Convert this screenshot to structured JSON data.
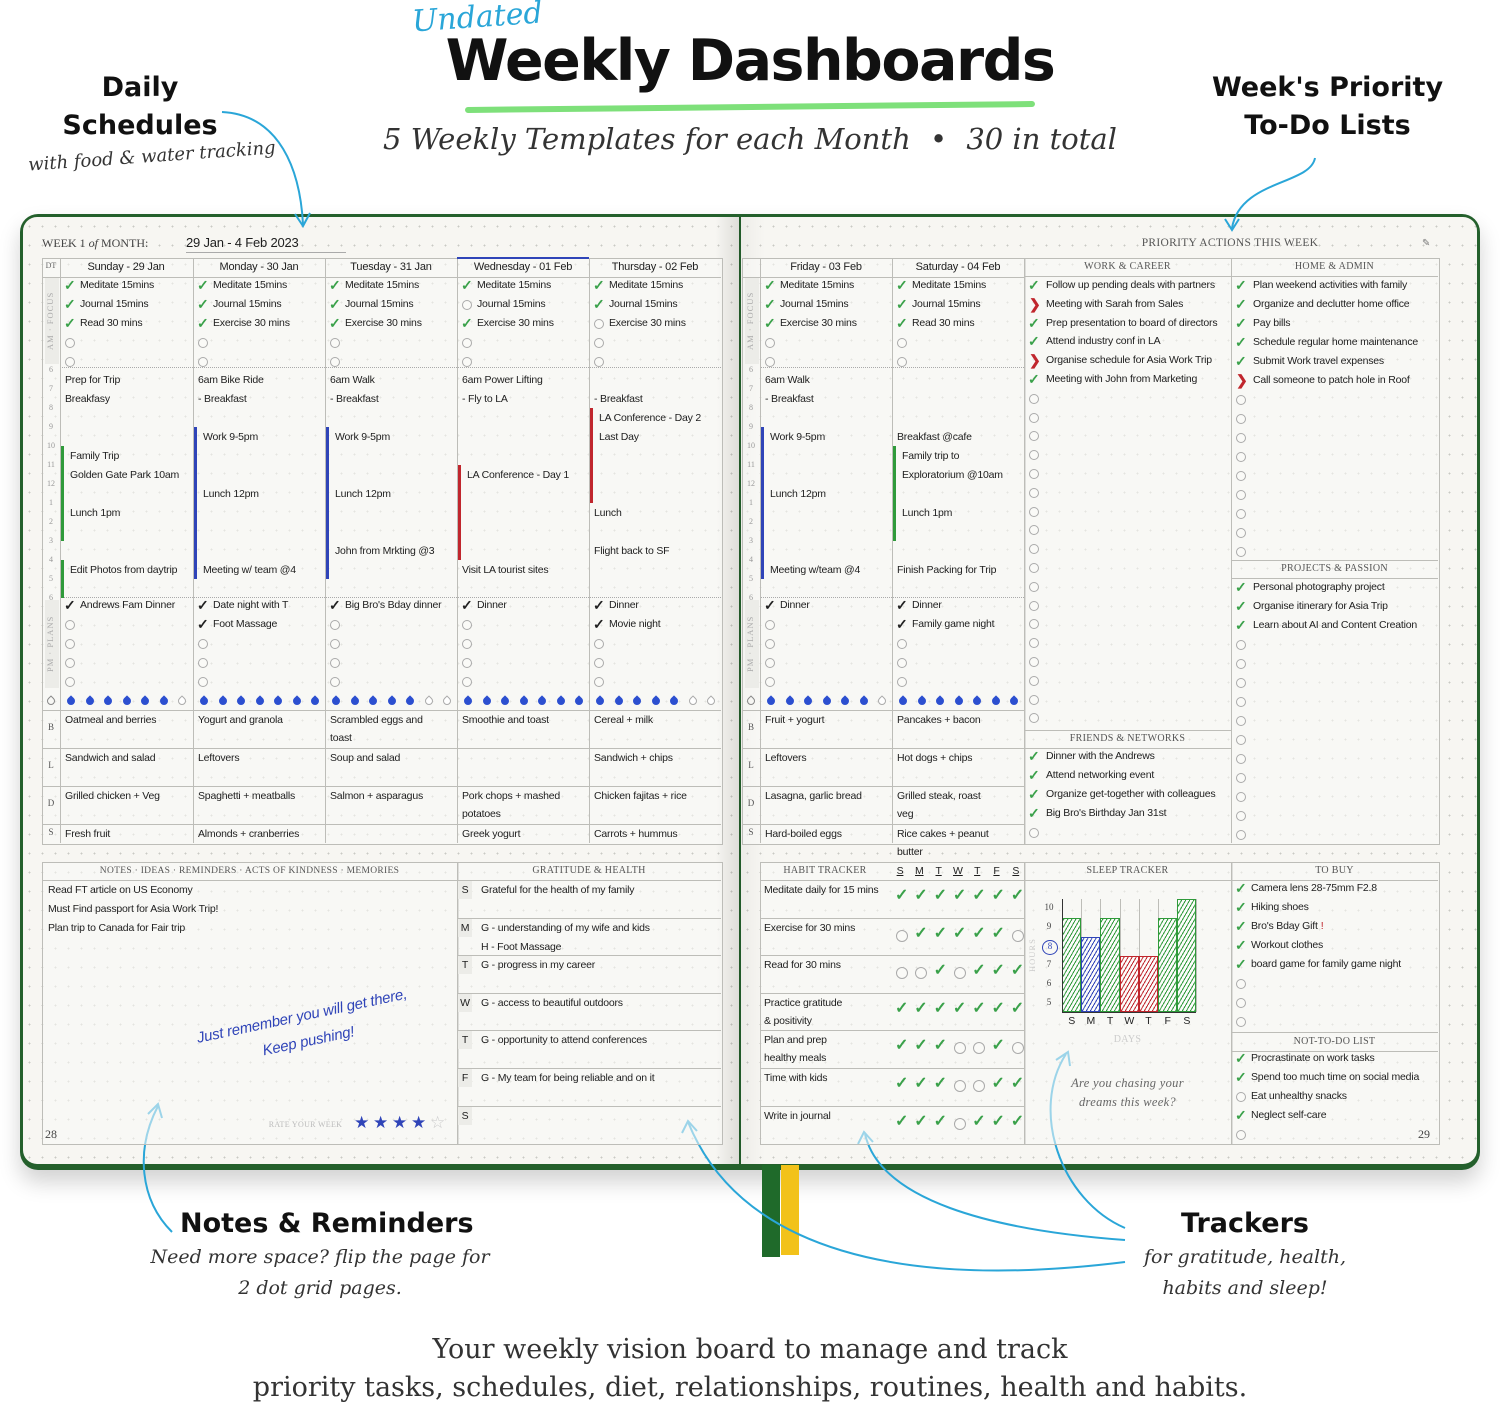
{
  "hero": {
    "undated": "Undated",
    "title": "Weekly Dashboards",
    "subtitle": "5 Weekly Templates for each Month",
    "subtitle_sep": "•",
    "subtitle_total": "30 in total"
  },
  "callouts": {
    "daily": {
      "line1": "Daily",
      "line2": "Schedules",
      "sub": "with food & water tracking"
    },
    "priority": {
      "line1": "Week's Priority",
      "line2": "To-Do Lists"
    },
    "notes": {
      "title": "Notes & Reminders",
      "sub1": "Need more space? flip the page for",
      "sub2": "2 dot grid pages."
    },
    "trackers": {
      "title": "Trackers",
      "sub1": "for gratitude, health,",
      "sub2": "habits and sleep!"
    }
  },
  "footer": {
    "line1": "Your weekly vision board to manage and track",
    "line2": "priority tasks, schedules, diet, relationships, routines, health and habits."
  },
  "left_page": {
    "week_prefix": "WEEK 1",
    "week_of": "of",
    "week_suffix": "MONTH:",
    "week_range": "29 Jan  -  4 Feb  2023",
    "dt": "DT",
    "am_label": "AM · FOCUS",
    "pm_label": "PM · PLANS",
    "meal_labels": [
      "B",
      "L",
      "D",
      "S"
    ],
    "page_number": "28"
  },
  "right_page": {
    "priority_title": "PRIORITY ACTIONS THIS WEEK",
    "page_number": "29"
  },
  "hours": [
    "6",
    "7",
    "8",
    "9",
    "10",
    "11",
    "12",
    "1",
    "2",
    "3",
    "4",
    "5",
    "6"
  ],
  "water_total": 7,
  "days": [
    {
      "header": "Sunday  -  29 Jan",
      "am": [
        {
          "t": "Meditate 15mins",
          "s": "done"
        },
        {
          "t": "Journal 15mins",
          "s": "done"
        },
        {
          "t": "Read 30 mins",
          "s": "done"
        },
        {
          "t": "",
          "s": "open"
        },
        {
          "t": "",
          "s": "open"
        }
      ],
      "schedule": [
        "Prep for Trip",
        "Breakfasy",
        "",
        "",
        "Family Trip",
        "Golden Gate Park 10am",
        "",
        "Lunch 1pm",
        "",
        "",
        "Edit Photos from daytrip"
      ],
      "blocks": [
        {
          "from": 10,
          "to": 15,
          "color": "green"
        },
        {
          "from": 16,
          "to": 18,
          "color": "green"
        }
      ],
      "pm": [
        {
          "t": "Andrews Fam Dinner",
          "s": "done"
        },
        {
          "t": "",
          "s": "open"
        },
        {
          "t": "",
          "s": "open"
        },
        {
          "t": "",
          "s": "open"
        },
        {
          "t": "",
          "s": "open"
        }
      ],
      "water": 6,
      "meals": {
        "B": "Oatmeal and berries",
        "L": "Sandwich and salad",
        "D": "Grilled chicken + Veg",
        "S": "Fresh fruit"
      }
    },
    {
      "header": "Monday  -  30 Jan",
      "am": [
        {
          "t": "Meditate 15mins",
          "s": "done"
        },
        {
          "t": "Journal 15mins",
          "s": "done"
        },
        {
          "t": "Exercise 30 mins",
          "s": "done"
        },
        {
          "t": "",
          "s": "open"
        },
        {
          "t": "",
          "s": "open"
        }
      ],
      "schedule": [
        "6am Bike Ride",
        "- Breakfast",
        "",
        "Work 9-5pm",
        "",
        "",
        "Lunch 12pm",
        "",
        "",
        "",
        "Meeting w/ team @4"
      ],
      "blocks": [
        {
          "from": 9,
          "to": 17,
          "color": "blue"
        }
      ],
      "pm": [
        {
          "t": "Date night with T",
          "s": "done"
        },
        {
          "t": "Foot Massage",
          "s": "done"
        },
        {
          "t": "",
          "s": "open"
        },
        {
          "t": "",
          "s": "open"
        },
        {
          "t": "",
          "s": "open"
        }
      ],
      "water": 7,
      "meals": {
        "B": "Yogurt and granola",
        "L": "Leftovers",
        "D": "Spaghetti + meatballs",
        "S": "Almonds + cranberries"
      }
    },
    {
      "header": "Tuesday  -  31 Jan",
      "am": [
        {
          "t": "Meditate 15mins",
          "s": "done"
        },
        {
          "t": "Journal 15mins",
          "s": "done"
        },
        {
          "t": "Exercise 30 mins",
          "s": "done"
        },
        {
          "t": "",
          "s": "open"
        },
        {
          "t": "",
          "s": "open"
        }
      ],
      "schedule": [
        "6am Walk",
        "- Breakfast",
        "",
        "Work 9-5pm",
        "",
        "",
        "Lunch 12pm",
        "",
        "",
        "John from Mrkting @3",
        ""
      ],
      "blocks": [
        {
          "from": 9,
          "to": 17,
          "color": "blue"
        }
      ],
      "pm": [
        {
          "t": "Big Bro's Bday dinner",
          "s": "done"
        },
        {
          "t": "",
          "s": "open"
        },
        {
          "t": "",
          "s": "open"
        },
        {
          "t": "",
          "s": "open"
        },
        {
          "t": "",
          "s": "open"
        }
      ],
      "water": 5,
      "meals": {
        "B": "Scrambled eggs and toast",
        "L": "Soup and salad",
        "D": "Salmon + asparagus",
        "S": ""
      }
    },
    {
      "header": "Wednesday  -  01 Feb",
      "am": [
        {
          "t": "Meditate 15mins",
          "s": "done"
        },
        {
          "t": "Journal 15mins",
          "s": "open"
        },
        {
          "t": "Exercise 30 mins",
          "s": "done"
        },
        {
          "t": "",
          "s": "open"
        },
        {
          "t": "",
          "s": "open"
        }
      ],
      "schedule": [
        "6am Power Lifting",
        "- Fly to LA",
        "",
        "",
        "",
        "LA Conference - Day 1",
        "",
        "",
        "",
        "",
        "Visit LA tourist sites"
      ],
      "blocks": [
        {
          "from": 11,
          "to": 16,
          "color": "red"
        }
      ],
      "pm": [
        {
          "t": "Dinner",
          "s": "done"
        },
        {
          "t": "",
          "s": "open"
        },
        {
          "t": "",
          "s": "open"
        },
        {
          "t": "",
          "s": "open"
        },
        {
          "t": "",
          "s": "open"
        }
      ],
      "water": 7,
      "meals": {
        "B": "Smoothie and toast",
        "L": "",
        "D": "Pork chops + mashed potatoes",
        "S": "Greek yogurt"
      }
    },
    {
      "header": "Thursday  -  02 Feb",
      "am": [
        {
          "t": "Meditate 15mins",
          "s": "done"
        },
        {
          "t": "Journal 15mins",
          "s": "done"
        },
        {
          "t": "Exercise 30 mins",
          "s": "open"
        },
        {
          "t": "",
          "s": "open"
        },
        {
          "t": "",
          "s": "open"
        }
      ],
      "schedule": [
        "",
        "- Breakfast",
        "LA Conference - Day 2",
        "Last Day",
        "",
        "",
        "",
        "Lunch",
        "",
        "Flight back to SF",
        ""
      ],
      "blocks": [
        {
          "from": 8,
          "to": 13,
          "color": "red"
        }
      ],
      "pm": [
        {
          "t": "Dinner",
          "s": "done"
        },
        {
          "t": "Movie night",
          "s": "done"
        },
        {
          "t": "",
          "s": "open"
        },
        {
          "t": "",
          "s": "open"
        },
        {
          "t": "",
          "s": "open"
        }
      ],
      "water": 5,
      "meals": {
        "B": "Cereal + milk",
        "L": "Sandwich + chips",
        "D": "Chicken fajitas + rice",
        "S": "Carrots + hummus"
      }
    },
    {
      "header": "Friday  -  03 Feb",
      "am": [
        {
          "t": "Meditate 15mins",
          "s": "done"
        },
        {
          "t": "Journal 15mins",
          "s": "done"
        },
        {
          "t": "Exercise 30 mins",
          "s": "done"
        },
        {
          "t": "",
          "s": "open"
        },
        {
          "t": "",
          "s": "open"
        }
      ],
      "schedule": [
        "6am Walk",
        "- Breakfast",
        "",
        "Work 9-5pm",
        "",
        "",
        "Lunch 12pm",
        "",
        "",
        "",
        "Meeting w/team @4"
      ],
      "blocks": [
        {
          "from": 9,
          "to": 17,
          "color": "blue"
        }
      ],
      "pm": [
        {
          "t": "Dinner",
          "s": "done"
        },
        {
          "t": "",
          "s": "open"
        },
        {
          "t": "",
          "s": "open"
        },
        {
          "t": "",
          "s": "open"
        },
        {
          "t": "",
          "s": "open"
        }
      ],
      "water": 6,
      "meals": {
        "B": "Fruit + yogurt",
        "L": "Leftovers",
        "D": "Lasagna, garlic bread",
        "S": "Hard-boiled eggs"
      }
    },
    {
      "header": "Saturday  -  04 Feb",
      "am": [
        {
          "t": "Meditate 15mins",
          "s": "done"
        },
        {
          "t": "Journal 15mins",
          "s": "done"
        },
        {
          "t": "Read 30 mins",
          "s": "done"
        },
        {
          "t": "",
          "s": "open"
        },
        {
          "t": "",
          "s": "open"
        }
      ],
      "schedule": [
        "",
        "",
        "",
        "Breakfast @cafe",
        "Family trip to",
        "Exploratorium @10am",
        "",
        "Lunch 1pm",
        "",
        "",
        "Finish Packing for Trip"
      ],
      "blocks": [
        {
          "from": 10,
          "to": 15,
          "color": "green"
        }
      ],
      "pm": [
        {
          "t": "Dinner",
          "s": "done"
        },
        {
          "t": "Family game night",
          "s": "done"
        },
        {
          "t": "",
          "s": "open"
        },
        {
          "t": "",
          "s": "open"
        },
        {
          "t": "",
          "s": "open"
        }
      ],
      "water": 7,
      "meals": {
        "B": "Pancakes + bacon",
        "L": "Hot dogs + chips",
        "D": "Grilled steak, roast veg",
        "S": "Rice cakes + peanut butter"
      }
    }
  ],
  "priorities": {
    "work": {
      "title": "WORK & CAREER",
      "items": [
        {
          "t": "Follow up pending deals with partners",
          "s": "done"
        },
        {
          "t": "Meeting with Sarah from Sales",
          "s": "migrated"
        },
        {
          "t": "Prep presentation to board of directors",
          "s": "done"
        },
        {
          "t": "Attend industry conf in LA",
          "s": "done"
        },
        {
          "t": "Organise schedule for Asia Work Trip",
          "s": "migrated"
        },
        {
          "t": "Meeting with John from Marketing",
          "s": "done"
        }
      ],
      "empty_slots": 18
    },
    "friends": {
      "title": "FRIENDS & NETWORKS",
      "items": [
        {
          "t": "Dinner with the Andrews",
          "s": "done"
        },
        {
          "t": "Attend networking event",
          "s": "done"
        },
        {
          "t": "Organize get-together with colleagues",
          "s": "done"
        },
        {
          "t": "Big Bro's Birthday Jan 31st",
          "s": "done"
        }
      ],
      "empty_slots": 1
    },
    "home": {
      "title": "HOME & ADMIN",
      "items": [
        {
          "t": "Plan weekend activities with family",
          "s": "done"
        },
        {
          "t": "Organize and declutter home office",
          "s": "done"
        },
        {
          "t": "Pay bills",
          "s": "done"
        },
        {
          "t": "Schedule regular home maintenance",
          "s": "done"
        },
        {
          "t": "Submit Work travel expenses",
          "s": "done"
        },
        {
          "t": "Call someone to patch hole in Roof",
          "s": "migrated"
        }
      ],
      "empty_slots": 9
    },
    "projects": {
      "title": "PROJECTS & PASSION",
      "items": [
        {
          "t": "Personal photography project",
          "s": "done"
        },
        {
          "t": "Organise itinerary for Asia Trip",
          "s": "done"
        },
        {
          "t": "Learn about AI and Content Creation",
          "s": "done"
        }
      ],
      "empty_slots": 11
    }
  },
  "notes": {
    "title": "NOTES · IDEAS · REMINDERS · ACTS OF KINDNESS · MEMORIES",
    "items": [
      "Read FT article on US Economy",
      "Must Find passport for Asia Work Trip!",
      "Plan trip to Canada for Fair trip"
    ],
    "motivation_line1": "Just remember you will get there,",
    "motivation_line2": "Keep pushing!",
    "rate_label": "RATE YOUR WEEK",
    "rating": 4,
    "rating_max": 5
  },
  "gratitude": {
    "title": "GRATITUDE & HEALTH",
    "rows": [
      {
        "day": "S",
        "lines": [
          "Grateful for the health of my family"
        ]
      },
      {
        "day": "M",
        "lines": [
          "G - understanding of my wife and kids",
          "H - Foot Massage"
        ]
      },
      {
        "day": "T",
        "lines": [
          "G - progress in my career"
        ]
      },
      {
        "day": "W",
        "lines": [
          "G - access to beautiful outdoors"
        ]
      },
      {
        "day": "T",
        "lines": [
          "G - opportunity to attend conferences"
        ]
      },
      {
        "day": "F",
        "lines": [
          "G - My team for being reliable and on it"
        ]
      },
      {
        "day": "S",
        "lines": []
      }
    ]
  },
  "habits": {
    "title": "HABIT TRACKER",
    "days": [
      "S",
      "M",
      "T",
      "W",
      "T",
      "F",
      "S"
    ],
    "rows": [
      {
        "label": [
          "Meditate daily for 15 mins"
        ],
        "status": [
          1,
          1,
          1,
          1,
          1,
          1,
          1
        ]
      },
      {
        "label": [
          "Exercise for 30 mins"
        ],
        "status": [
          0,
          1,
          1,
          1,
          1,
          1,
          0
        ]
      },
      {
        "label": [
          "Read for 30 mins"
        ],
        "status": [
          0,
          0,
          1,
          0,
          1,
          1,
          1
        ]
      },
      {
        "label": [
          "Practice gratitude",
          "& positivity"
        ],
        "status": [
          1,
          1,
          1,
          1,
          1,
          1,
          1
        ]
      },
      {
        "label": [
          "Plan and prep",
          "healthy meals"
        ],
        "status": [
          1,
          1,
          1,
          0,
          0,
          1,
          0
        ]
      },
      {
        "label": [
          "Time with kids"
        ],
        "status": [
          1,
          1,
          1,
          0,
          0,
          1,
          1
        ]
      },
      {
        "label": [
          "Write in journal"
        ],
        "status": [
          1,
          1,
          1,
          0,
          1,
          1,
          1
        ]
      }
    ]
  },
  "sleep": {
    "title": "SLEEP TRACKER",
    "y_label": "HOURS",
    "x_label": "DAYS",
    "y_ticks": [
      "5",
      "6",
      "7",
      "8",
      "9",
      "10"
    ],
    "highlighted_tick": "8",
    "days": [
      "S",
      "M",
      "T",
      "W",
      "T",
      "F",
      "S"
    ],
    "hours": [
      9.5,
      8.5,
      9.5,
      7.5,
      7.5,
      9.5,
      10.5
    ],
    "bar_colors": [
      "green",
      "blue",
      "green",
      "red",
      "red",
      "green",
      "green"
    ],
    "prompt_line1": "Are you chasing your",
    "prompt_line2": "dreams this week?"
  },
  "to_buy": {
    "title": "TO BUY",
    "items": [
      {
        "t": "Camera lens 28-75mm F2.8",
        "s": "done"
      },
      {
        "t": "Hiking shoes",
        "s": "done"
      },
      {
        "t": "Bro's Bday Gift",
        "s": "done",
        "flag": "!"
      },
      {
        "t": "Workout clothes",
        "s": "done"
      },
      {
        "t": "board game for family game night",
        "s": "done"
      }
    ],
    "empty_slots": 3
  },
  "not_to_do": {
    "title": "NOT-TO-DO LIST",
    "items": [
      {
        "t": "Procrastinate on work tasks",
        "s": "done"
      },
      {
        "t": "Spend too much time on social media",
        "s": "done"
      },
      {
        "t": "Eat unhealthy snacks",
        "s": "open"
      },
      {
        "t": "Neglect self-care",
        "s": "done"
      }
    ],
    "empty_slots": 1
  },
  "colors": {
    "green": "#2f9a3a",
    "blue": "#2f44b8",
    "red": "#c0262d",
    "check_green": "#3aa14a",
    "migrated_red": "#c0262d",
    "water": "#2c4fd0",
    "cover": "#24602c",
    "page": "#f7f6f2",
    "accent_cyan": "#2aa6d8",
    "title_underline": "#7ee07a",
    "ribbon_green": "#1f6a2a",
    "ribbon_yellow": "#f2c21a"
  }
}
